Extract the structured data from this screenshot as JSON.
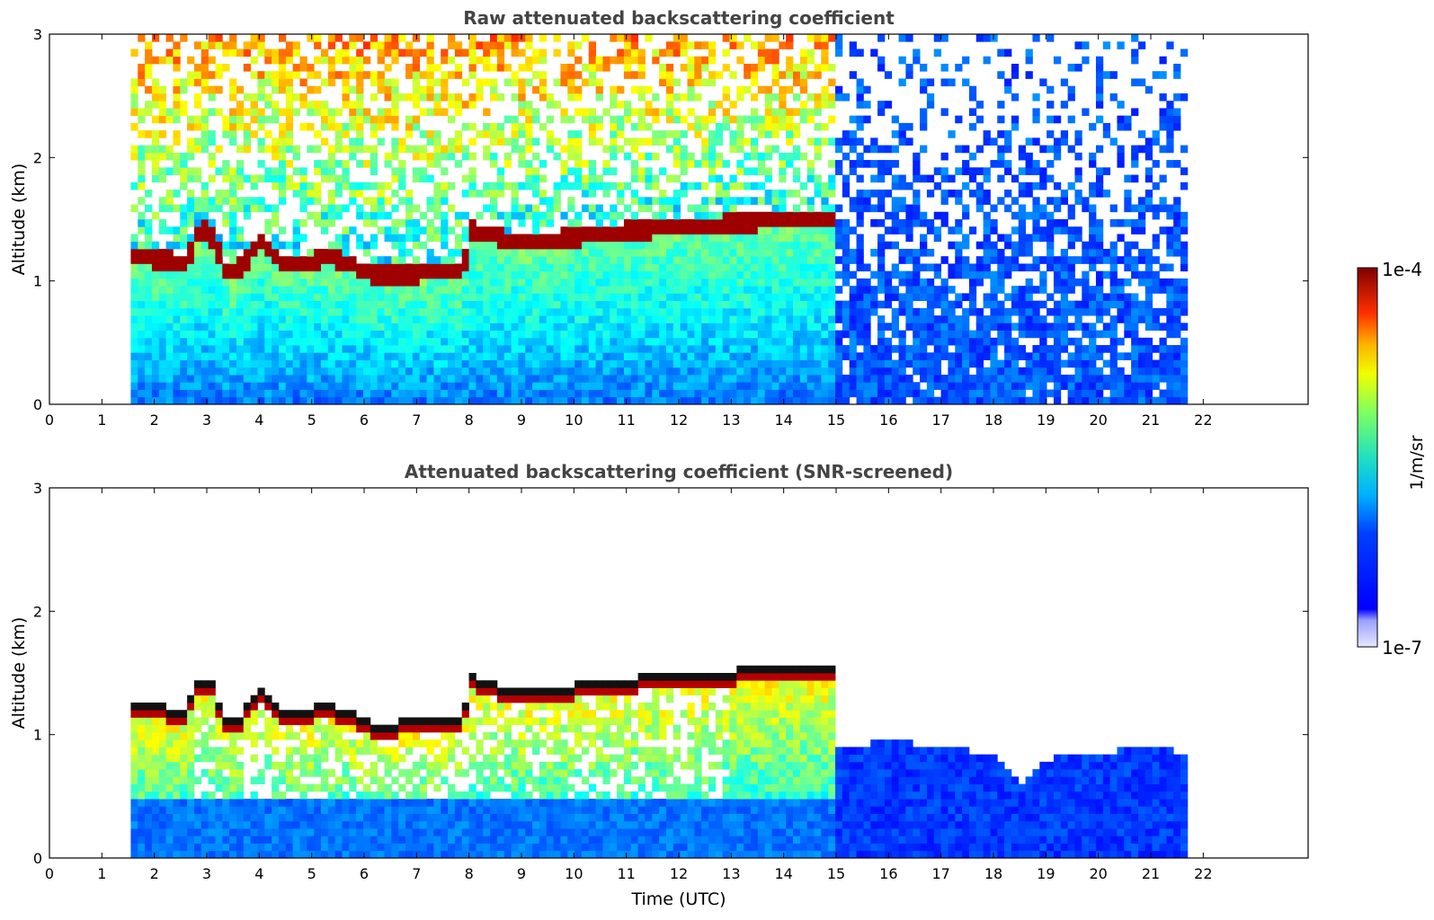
{
  "chart_data": [
    {
      "type": "heatmap",
      "title": "Raw attenuated backscattering coefficient",
      "xlabel": "",
      "ylabel": "Altitude (km)",
      "xlim": [
        0,
        24
      ],
      "ylim": [
        0,
        3
      ],
      "x_ticks": [
        "0",
        "1",
        "2",
        "3",
        "4",
        "5",
        "6",
        "7",
        "8",
        "9",
        "10",
        "11",
        "12",
        "13",
        "14",
        "15",
        "16",
        "17",
        "18",
        "19",
        "20",
        "21",
        "22"
      ],
      "y_ticks": [
        "0",
        "1",
        "2",
        "3"
      ],
      "data_time_range": [
        1.55,
        21.7
      ],
      "cloud_layer": {
        "time": [
          1.55,
          2.0,
          2.6,
          2.9,
          3.1,
          3.4,
          3.7,
          4.0,
          4.4,
          4.8,
          5.3,
          5.8,
          6.2,
          7.0,
          7.9,
          8.0,
          8.3,
          9.0,
          9.6,
          10.5,
          11.5,
          12.5,
          13.5,
          14.0,
          15.0
        ],
        "altitude": [
          1.22,
          1.18,
          1.15,
          1.43,
          1.35,
          1.05,
          1.12,
          1.35,
          1.15,
          1.13,
          1.2,
          1.12,
          1.04,
          1.06,
          1.06,
          1.42,
          1.38,
          1.3,
          1.33,
          1.38,
          1.42,
          1.45,
          1.48,
          1.5,
          1.52
        ]
      }
    },
    {
      "type": "heatmap",
      "title": "Attenuated backscattering coefficient (SNR-screened)",
      "xlabel": "Time (UTC)",
      "ylabel": "Altitude (km)",
      "xlim": [
        0,
        24
      ],
      "ylim": [
        0,
        3
      ],
      "x_ticks": [
        "0",
        "1",
        "2",
        "3",
        "4",
        "5",
        "6",
        "7",
        "8",
        "9",
        "10",
        "11",
        "12",
        "13",
        "14",
        "15",
        "16",
        "17",
        "18",
        "19",
        "20",
        "21",
        "22"
      ],
      "y_ticks": [
        "0",
        "1",
        "2",
        "3"
      ],
      "data_time_range": [
        1.55,
        21.7
      ],
      "screened_boundary_top": {
        "time": [
          15.0,
          16.0,
          17.0,
          18.0,
          18.5,
          19.0,
          20.0,
          21.0,
          21.7
        ],
        "altitude": [
          0.9,
          0.95,
          0.9,
          0.85,
          0.6,
          0.8,
          0.85,
          0.9,
          0.85
        ]
      }
    }
  ],
  "colorbar": {
    "label": "1/m/sr",
    "min_label": "1e-7",
    "max_label": "1e-4",
    "scale": "log",
    "colormap": "jet"
  }
}
